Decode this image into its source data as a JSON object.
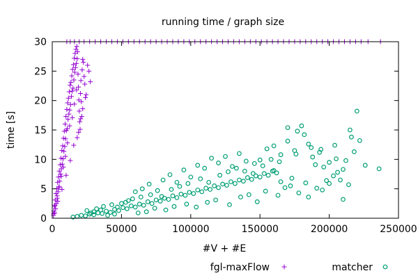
{
  "chart_data": {
    "type": "scatter",
    "title": "running time / graph size",
    "xlabel": "#V + #E",
    "ylabel": "time [s]",
    "xlim": [
      0,
      250000
    ],
    "ylim": [
      0,
      30
    ],
    "x_ticks": [
      "0",
      "50000",
      "100000",
      "150000",
      "200000",
      "250000"
    ],
    "y_ticks": [
      "0",
      "5",
      "10",
      "15",
      "20",
      "25",
      "30"
    ],
    "grid": false,
    "legend_position": "bottom",
    "colors": {
      "fgl": "#9400d3",
      "matcher": "#009e73"
    },
    "series": [
      {
        "name": "fgl-maxFlow",
        "marker": "plus",
        "points": [
          [
            900,
            0.5
          ],
          [
            1200,
            1.2
          ],
          [
            1500,
            2.0
          ],
          [
            1800,
            0.9
          ],
          [
            2100,
            3.1
          ],
          [
            2400,
            1.6
          ],
          [
            2700,
            4.2
          ],
          [
            3000,
            2.5
          ],
          [
            3300,
            5.0
          ],
          [
            3600,
            3.4
          ],
          [
            3900,
            6.1
          ],
          [
            4200,
            4.5
          ],
          [
            4500,
            7.0
          ],
          [
            4800,
            5.2
          ],
          [
            5100,
            8.0
          ],
          [
            5400,
            6.3
          ],
          [
            5700,
            9.1
          ],
          [
            6000,
            7.5
          ],
          [
            6300,
            10.2
          ],
          [
            6600,
            8.4
          ],
          [
            6900,
            11.5
          ],
          [
            7200,
            9.2
          ],
          [
            7500,
            12.3
          ],
          [
            7800,
            10.1
          ],
          [
            8100,
            13.6
          ],
          [
            8400,
            11.4
          ],
          [
            8700,
            14.8
          ],
          [
            9000,
            12.2
          ],
          [
            9300,
            16.0
          ],
          [
            9600,
            13.5
          ],
          [
            9900,
            17.3
          ],
          [
            10200,
            14.9
          ],
          [
            10500,
            18.5
          ],
          [
            10800,
            15.2
          ],
          [
            11100,
            19.6
          ],
          [
            11400,
            16.8
          ],
          [
            11700,
            20.4
          ],
          [
            12000,
            17.7
          ],
          [
            12300,
            21.5
          ],
          [
            12600,
            18.4
          ],
          [
            12900,
            22.6
          ],
          [
            13200,
            19.3
          ],
          [
            13500,
            23.1
          ],
          [
            13800,
            20.7
          ],
          [
            14100,
            24.2
          ],
          [
            14400,
            21.6
          ],
          [
            14700,
            25.3
          ],
          [
            15000,
            22.1
          ],
          [
            15300,
            26.1
          ],
          [
            15600,
            23.5
          ],
          [
            15900,
            27.2
          ],
          [
            16200,
            24.8
          ],
          [
            16500,
            28.0
          ],
          [
            16800,
            25.6
          ],
          [
            17100,
            28.7
          ],
          [
            17400,
            26.3
          ],
          [
            17700,
            29.2
          ],
          [
            18000,
            27.1
          ],
          [
            18300,
            28.3
          ],
          [
            18600,
            24.5
          ],
          [
            18900,
            22.3
          ],
          [
            19200,
            20.1
          ],
          [
            19500,
            18.2
          ],
          [
            19800,
            16.4
          ],
          [
            20100,
            15.1
          ],
          [
            20400,
            21.2
          ],
          [
            20700,
            23.4
          ],
          [
            21000,
            19.8
          ],
          [
            21300,
            17.3
          ],
          [
            21600,
            25.2
          ],
          [
            22000,
            27.0
          ],
          [
            22500,
            26.5
          ],
          [
            23000,
            24.1
          ],
          [
            23500,
            22.8
          ],
          [
            24500,
            21.0
          ],
          [
            25500,
            26.0
          ],
          [
            26500,
            25.0
          ],
          [
            27500,
            23.2
          ],
          [
            12500,
            15.7
          ],
          [
            11000,
            12.8
          ],
          [
            9500,
            10.5
          ],
          [
            8000,
            8.7
          ],
          [
            6500,
            7.1
          ],
          [
            5000,
            5.4
          ],
          [
            3500,
            3.8
          ],
          [
            2000,
            2.2
          ],
          [
            1000,
            0.8
          ],
          [
            14500,
            17.1
          ],
          [
            16000,
            19.4
          ],
          [
            17500,
            21.8
          ],
          [
            19000,
            14.6
          ],
          [
            20500,
            16.9
          ],
          [
            13000,
            9.8
          ],
          [
            10000,
            7.3
          ],
          [
            7000,
            4.9
          ],
          [
            4000,
            2.9
          ],
          [
            15500,
            12.4
          ],
          [
            18000,
            13.7
          ],
          [
            22000,
            18.6
          ],
          [
            24000,
            20.5
          ],
          [
            10500,
            30
          ],
          [
            13000,
            30
          ],
          [
            16000,
            30
          ],
          [
            19500,
            30
          ],
          [
            23000,
            30
          ],
          [
            27000,
            30
          ],
          [
            31000,
            30
          ],
          [
            35000,
            30
          ],
          [
            39000,
            30
          ],
          [
            43000,
            30
          ],
          [
            47000,
            30
          ],
          [
            51000,
            30
          ],
          [
            55000,
            30
          ],
          [
            59000,
            30
          ],
          [
            63000,
            30
          ],
          [
            67000,
            30
          ],
          [
            71000,
            30
          ],
          [
            75000,
            30
          ],
          [
            79000,
            30
          ],
          [
            83000,
            30
          ],
          [
            87000,
            30
          ],
          [
            91000,
            30
          ],
          [
            95000,
            30
          ],
          [
            99000,
            30
          ],
          [
            103000,
            30
          ],
          [
            107000,
            30
          ],
          [
            111000,
            30
          ],
          [
            115000,
            30
          ],
          [
            119000,
            30
          ],
          [
            123000,
            30
          ],
          [
            127000,
            30
          ],
          [
            131000,
            30
          ],
          [
            135000,
            30
          ],
          [
            139000,
            30
          ],
          [
            143000,
            30
          ],
          [
            147000,
            30
          ],
          [
            151000,
            30
          ],
          [
            155000,
            30
          ],
          [
            159000,
            30
          ],
          [
            163000,
            30
          ],
          [
            167000,
            30
          ],
          [
            171000,
            30
          ],
          [
            175000,
            30
          ],
          [
            179000,
            30
          ],
          [
            183000,
            30
          ],
          [
            187000,
            30
          ],
          [
            191000,
            30
          ],
          [
            195000,
            30
          ],
          [
            199000,
            30
          ],
          [
            203000,
            30
          ],
          [
            207000,
            30
          ],
          [
            211000,
            30
          ],
          [
            215000,
            30
          ],
          [
            219000,
            30
          ],
          [
            223000,
            30
          ],
          [
            228000,
            30
          ],
          [
            237000,
            30
          ]
        ]
      },
      {
        "name": "matcher",
        "marker": "circle",
        "points": [
          [
            15000,
            0.2
          ],
          [
            18000,
            0.3
          ],
          [
            21000,
            0.5
          ],
          [
            24000,
            0.4
          ],
          [
            27000,
            0.7
          ],
          [
            30000,
            0.6
          ],
          [
            33000,
            0.9
          ],
          [
            36000,
            0.8
          ],
          [
            39000,
            1.2
          ],
          [
            42000,
            1.0
          ],
          [
            45000,
            1.5
          ],
          [
            48000,
            1.3
          ],
          [
            51000,
            1.8
          ],
          [
            54000,
            1.6
          ],
          [
            57000,
            2.1
          ],
          [
            60000,
            1.9
          ],
          [
            63000,
            2.4
          ],
          [
            66000,
            2.2
          ],
          [
            69000,
            2.8
          ],
          [
            72000,
            2.5
          ],
          [
            75000,
            3.1
          ],
          [
            78000,
            2.9
          ],
          [
            81000,
            3.4
          ],
          [
            84000,
            3.2
          ],
          [
            87000,
            3.8
          ],
          [
            90000,
            3.5
          ],
          [
            93000,
            4.1
          ],
          [
            96000,
            3.9
          ],
          [
            99000,
            4.4
          ],
          [
            102000,
            4.2
          ],
          [
            105000,
            4.8
          ],
          [
            108000,
            4.5
          ],
          [
            111000,
            5.1
          ],
          [
            114000,
            4.9
          ],
          [
            117000,
            5.5
          ],
          [
            120000,
            5.2
          ],
          [
            123000,
            5.8
          ],
          [
            126000,
            5.6
          ],
          [
            129000,
            6.2
          ],
          [
            132000,
            5.9
          ],
          [
            135000,
            6.5
          ],
          [
            138000,
            6.3
          ],
          [
            141000,
            6.9
          ],
          [
            144000,
            6.6
          ],
          [
            147000,
            7.2
          ],
          [
            150000,
            7.0
          ],
          [
            153000,
            7.6
          ],
          [
            156000,
            7.3
          ],
          [
            159000,
            8.0
          ],
          [
            162000,
            7.7
          ],
          [
            60000,
            4.5
          ],
          [
            65000,
            5.0
          ],
          [
            70000,
            5.8
          ],
          [
            80000,
            6.5
          ],
          [
            85000,
            7.4
          ],
          [
            90000,
            6.1
          ],
          [
            95000,
            8.2
          ],
          [
            100000,
            7.0
          ],
          [
            105000,
            9.0
          ],
          [
            110000,
            8.5
          ],
          [
            115000,
            10.2
          ],
          [
            120000,
            9.4
          ],
          [
            125000,
            10.5
          ],
          [
            130000,
            8.8
          ],
          [
            135000,
            11.0
          ],
          [
            140000,
            9.7
          ],
          [
            145000,
            7.6
          ],
          [
            150000,
            9.9
          ],
          [
            155000,
            11.8
          ],
          [
            160000,
            12.3
          ],
          [
            165000,
            10.8
          ],
          [
            170000,
            13.1
          ],
          [
            175000,
            11.5
          ],
          [
            180000,
            15.7
          ],
          [
            182000,
            14.2
          ],
          [
            185000,
            12.6
          ],
          [
            188000,
            10.4
          ],
          [
            190000,
            9.1
          ],
          [
            193000,
            11.2
          ],
          [
            196000,
            8.7
          ],
          [
            200000,
            9.5
          ],
          [
            203000,
            7.2
          ],
          [
            205000,
            10.1
          ],
          [
            208000,
            6.5
          ],
          [
            210000,
            8.3
          ],
          [
            212000,
            9.8
          ],
          [
            215000,
            15.0
          ],
          [
            218000,
            11.3
          ],
          [
            220000,
            18.2
          ],
          [
            222000,
            13.2
          ],
          [
            226000,
            9.0
          ],
          [
            236000,
            8.4
          ],
          [
            170000,
            15.4
          ],
          [
            177000,
            14.8
          ],
          [
            160000,
            8.1
          ],
          [
            165000,
            6.2
          ],
          [
            172000,
            5.5
          ],
          [
            178000,
            4.3
          ],
          [
            185000,
            3.6
          ],
          [
            195000,
            4.8
          ],
          [
            200000,
            5.9
          ],
          [
            210000,
            3.2
          ],
          [
            30000,
            1.1
          ],
          [
            35000,
            1.4
          ],
          [
            40000,
            0.5
          ],
          [
            45000,
            0.7
          ],
          [
            50000,
            2.5
          ],
          [
            55000,
            3.0
          ],
          [
            62000,
            0.9
          ],
          [
            68000,
            1.1
          ],
          [
            74000,
            1.7
          ],
          [
            82000,
            1.4
          ],
          [
            88000,
            2.0
          ],
          [
            97000,
            2.4
          ],
          [
            104000,
            1.9
          ],
          [
            112000,
            2.7
          ],
          [
            118000,
            3.1
          ],
          [
            128000,
            2.3
          ],
          [
            136000,
            3.6
          ],
          [
            142000,
            4.0
          ],
          [
            148000,
            2.8
          ],
          [
            154000,
            4.6
          ],
          [
            163000,
            3.9
          ],
          [
            168000,
            5.2
          ],
          [
            173000,
            6.8
          ],
          [
            183000,
            6.0
          ],
          [
            191000,
            5.1
          ],
          [
            198000,
            6.4
          ],
          [
            206000,
            7.8
          ],
          [
            214000,
            5.7
          ],
          [
            25000,
            1.3
          ],
          [
            28000,
            0.9
          ],
          [
            32000,
            1.6
          ],
          [
            37000,
            2.0
          ],
          [
            43000,
            2.3
          ],
          [
            47000,
            1.9
          ],
          [
            53000,
            2.7
          ],
          [
            58000,
            3.3
          ],
          [
            64000,
            3.6
          ],
          [
            71000,
            4.0
          ],
          [
            76000,
            4.7
          ],
          [
            79000,
            3.7
          ],
          [
            86000,
            4.9
          ],
          [
            92000,
            5.4
          ],
          [
            98000,
            5.9
          ],
          [
            107000,
            6.7
          ],
          [
            113000,
            6.1
          ],
          [
            121000,
            7.3
          ],
          [
            127000,
            7.9
          ],
          [
            133000,
            8.5
          ],
          [
            139000,
            8.0
          ],
          [
            146000,
            9.3
          ],
          [
            152000,
            8.9
          ],
          [
            158000,
            10.0
          ],
          [
            164000,
            9.6
          ],
          [
            176000,
            10.9
          ],
          [
            187000,
            12.0
          ],
          [
            194000,
            11.7
          ],
          [
            204000,
            12.4
          ],
          [
            216000,
            13.8
          ]
        ]
      }
    ]
  }
}
